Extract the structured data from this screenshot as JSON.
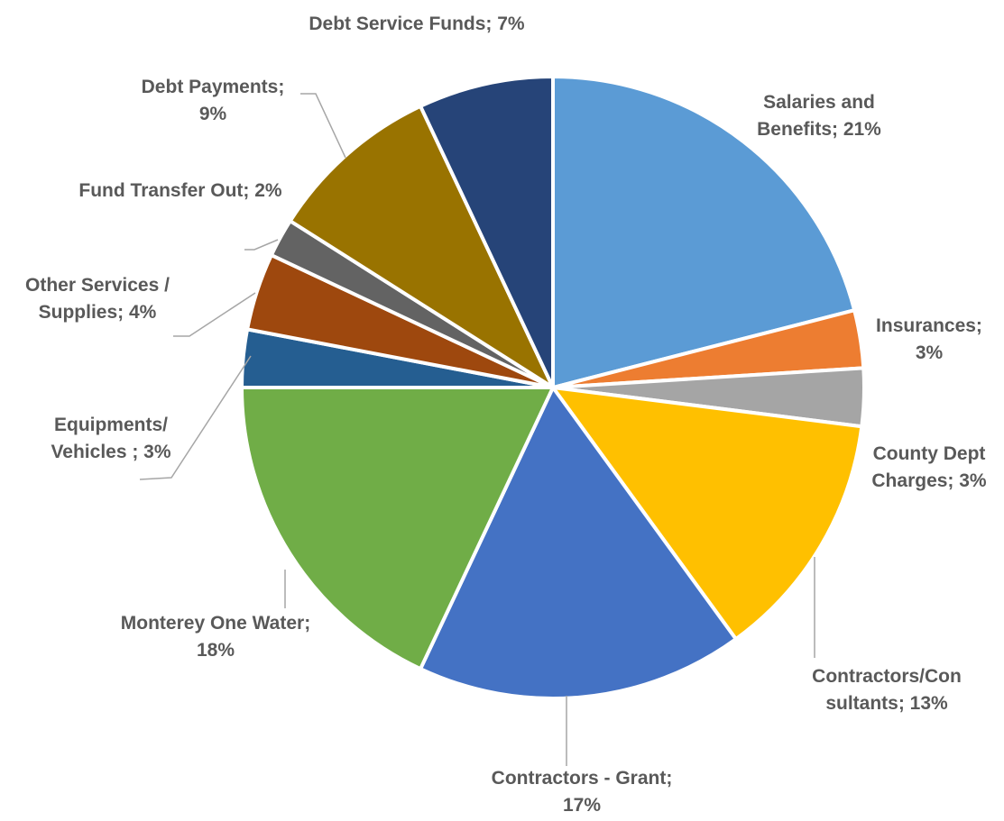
{
  "chart_data": {
    "type": "pie",
    "slices": [
      {
        "name": "Salaries and Benefits",
        "value": 21,
        "label_lines": [
          "Salaries and",
          "Benefits; 21%"
        ],
        "color": "#5B9BD5"
      },
      {
        "name": "Insurances",
        "value": 3,
        "label_lines": [
          "Insurances;",
          "3%"
        ],
        "color": "#ED7D31"
      },
      {
        "name": "County Dept Charges",
        "value": 3,
        "label_lines": [
          "County Dept",
          "Charges; 3%"
        ],
        "color": "#A5A5A5"
      },
      {
        "name": "Contractors/Consultants",
        "value": 13,
        "label_lines": [
          "Contractors/Con",
          "sultants; 13%"
        ],
        "color": "#FFC000"
      },
      {
        "name": "Contractors - Grant",
        "value": 17,
        "label_lines": [
          "Contractors - Grant;",
          "17%"
        ],
        "color": "#4472C4"
      },
      {
        "name": "Monterey One Water",
        "value": 18,
        "label_lines": [
          "Monterey One Water;",
          "18%"
        ],
        "color": "#70AD47"
      },
      {
        "name": "Equipments/Vehicles",
        "value": 3,
        "label_lines": [
          "Equipments/",
          "Vehicles ; 3%"
        ],
        "color": "#255E91"
      },
      {
        "name": "Other Services / Supplies",
        "value": 4,
        "label_lines": [
          "Other Services /",
          "Supplies; 4%"
        ],
        "color": "#9E480E"
      },
      {
        "name": "Fund Transfer Out",
        "value": 2,
        "label_lines": [
          "Fund Transfer Out; 2%"
        ],
        "color": "#636363"
      },
      {
        "name": "Debt Payments",
        "value": 9,
        "label_lines": [
          "Debt Payments;",
          "9%"
        ],
        "color": "#997300"
      },
      {
        "name": "Debt Service Funds",
        "value": 7,
        "label_lines": [
          "Debt Service Funds; 7%"
        ],
        "color": "#264478"
      }
    ],
    "start": "12 o'clock, clockwise",
    "legend": "none",
    "label_color": "#595959",
    "leader_line_color": "#A6A6A6"
  }
}
